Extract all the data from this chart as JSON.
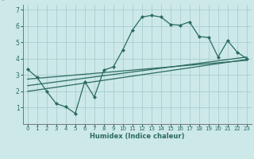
{
  "xlabel": "Humidex (Indice chaleur)",
  "bg_color": "#cce8e8",
  "line_color": "#2a6b5e",
  "grid_color": "#aacece",
  "xlim": [
    -0.5,
    23.5
  ],
  "ylim": [
    0,
    7.3
  ],
  "xticks": [
    0,
    1,
    2,
    3,
    4,
    5,
    6,
    7,
    8,
    9,
    10,
    11,
    12,
    13,
    14,
    15,
    16,
    17,
    18,
    19,
    20,
    21,
    22,
    23
  ],
  "yticks": [
    1,
    2,
    3,
    4,
    5,
    6,
    7
  ],
  "line1_x": [
    0,
    1,
    2,
    3,
    4,
    5,
    6,
    7,
    8,
    9,
    10,
    11,
    12,
    13,
    14,
    15,
    16,
    17,
    18,
    19,
    20,
    21,
    22,
    23
  ],
  "line1_y": [
    3.35,
    2.85,
    2.0,
    1.25,
    1.05,
    0.65,
    2.6,
    1.65,
    3.3,
    3.5,
    4.55,
    5.75,
    6.55,
    6.65,
    6.55,
    6.1,
    6.05,
    6.25,
    5.35,
    5.3,
    4.1,
    5.1,
    4.4,
    4.0
  ],
  "line2_x": [
    0,
    23
  ],
  "line2_y": [
    2.75,
    3.9
  ],
  "line3_x": [
    0,
    23
  ],
  "line3_y": [
    2.35,
    4.1
  ],
  "line4_x": [
    0,
    23
  ],
  "line4_y": [
    2.0,
    3.95
  ]
}
